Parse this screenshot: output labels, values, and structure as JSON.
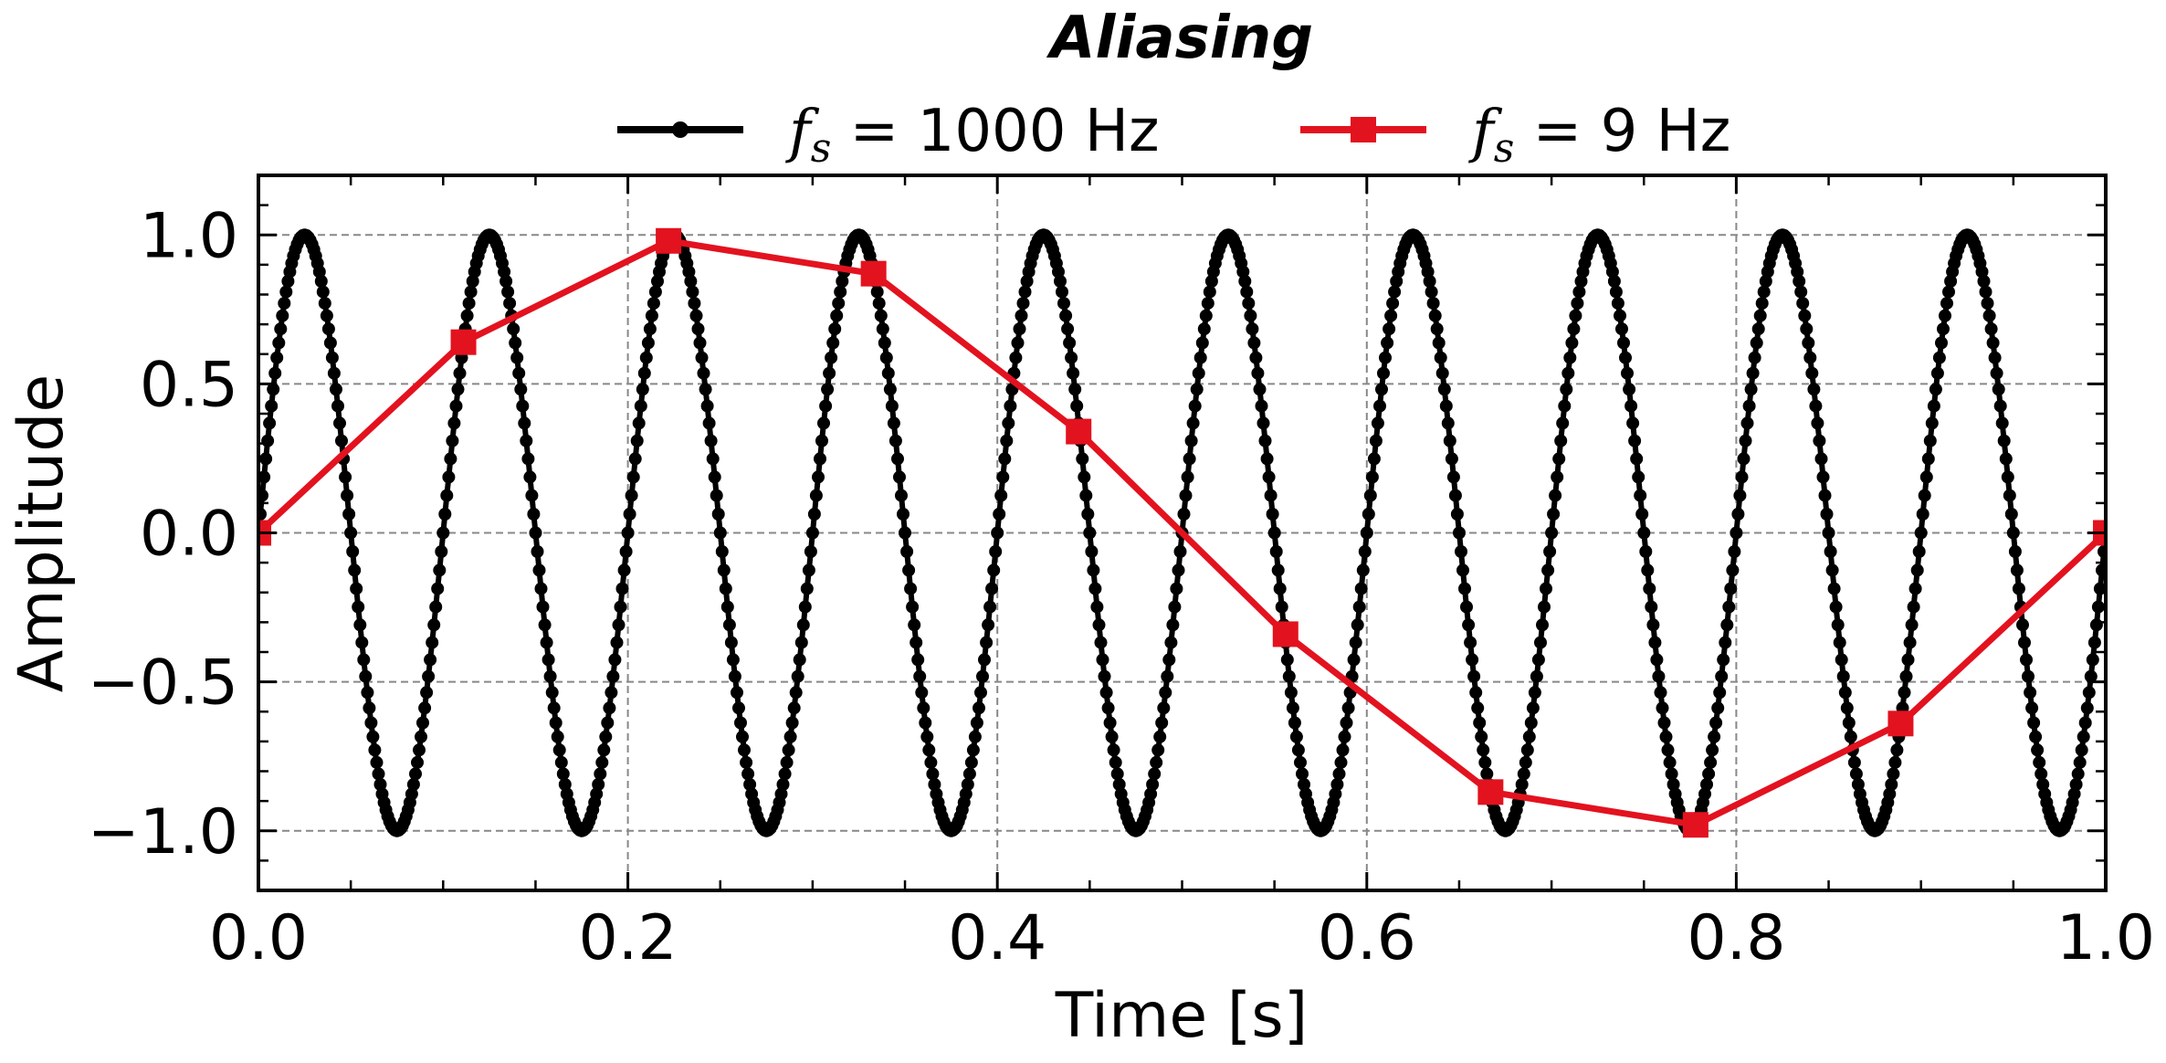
{
  "chart_data": {
    "type": "line",
    "title": "Aliasing",
    "xlabel": "Time [s]",
    "ylabel": "Amplitude",
    "xlim": [
      0.0,
      1.0
    ],
    "ylim": [
      -1.2,
      1.2
    ],
    "xticks": [
      0.0,
      0.2,
      0.4,
      0.6,
      0.8,
      1.0
    ],
    "xtick_labels": [
      "0.0",
      "0.2",
      "0.4",
      "0.6",
      "0.8",
      "1.0"
    ],
    "yticks": [
      1.0,
      0.5,
      0.0,
      -0.5,
      -1.0
    ],
    "ytick_labels": [
      "1.0",
      "0.5",
      "0.0",
      "−0.5",
      "−1.0"
    ],
    "grid": true,
    "legend_position": "top-center",
    "series": [
      {
        "name_prefix": "f",
        "name_sub": "s",
        "name_suffix": " =  1000 Hz",
        "color": "#000000",
        "marker": "circle",
        "signal_frequency_hz": 10,
        "sampling_rate_hz": 1000,
        "x_range": [
          0.0,
          1.0
        ]
      },
      {
        "name_prefix": "f",
        "name_sub": "s",
        "name_suffix": " =  9 Hz",
        "color": "#e3121f",
        "marker": "square",
        "x": [
          0.0,
          0.111,
          0.222,
          0.333,
          0.444,
          0.556,
          0.667,
          0.778,
          0.889,
          1.0
        ],
        "y": [
          0.0,
          0.64,
          0.98,
          0.87,
          0.34,
          -0.34,
          -0.87,
          -0.98,
          -0.64,
          -0.0
        ]
      }
    ]
  }
}
